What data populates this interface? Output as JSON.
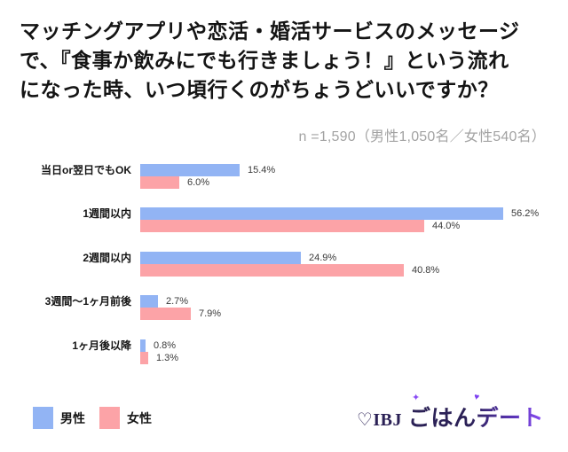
{
  "frame": {
    "border_gradient": [
      "#f4466d",
      "#c04ad8",
      "#4a72dd"
    ],
    "background": "#ffffff"
  },
  "header": {
    "title_lines": [
      "マッチングアプリや恋活・婚活サービスのメッセージ",
      "で、『食事か飲みにでも行きましょう！』という流れ",
      "になった時、いつ頃行くのがちょうどいいですか？"
    ],
    "sample_note": "n =1,590（男性1,050名／女性540名）"
  },
  "chart_data": {
    "type": "bar",
    "orientation": "horizontal",
    "title": "マッチングアプリや恋活・婚活サービスのメッセージで、『食事か飲みにでも行きましょう！』という流れになった時、いつ頃行くのがちょうどいいですか？",
    "subtitle": "n =1,590（男性1,050名／女性540名）",
    "categories": [
      "当日or翌日でもOK",
      "1週間以内",
      "2週間以内",
      "3週間〜1ヶ月前後",
      "1ヶ月後以降"
    ],
    "series": [
      {
        "key": "male",
        "name": "男性",
        "color": "#92b4f4",
        "values": [
          15.4,
          56.2,
          24.9,
          2.7,
          0.8
        ]
      },
      {
        "key": "female",
        "name": "女性",
        "color": "#fca3a7",
        "values": [
          6.0,
          44.0,
          40.8,
          7.9,
          1.3
        ]
      }
    ],
    "value_suffix": "%",
    "xlim": [
      0,
      60
    ],
    "grid": false,
    "legend_position": "bottom-left"
  },
  "legend": {
    "items": [
      {
        "key": "male",
        "label": "男性",
        "color": "#92b4f4"
      },
      {
        "key": "female",
        "label": "女性",
        "color": "#fca3a7"
      }
    ]
  },
  "footer": {
    "logo_prefix": "♡IBJ",
    "logo_text": "ごはんデート",
    "logo_color": "#2b2156",
    "logo_accent": "#8a4df5"
  }
}
